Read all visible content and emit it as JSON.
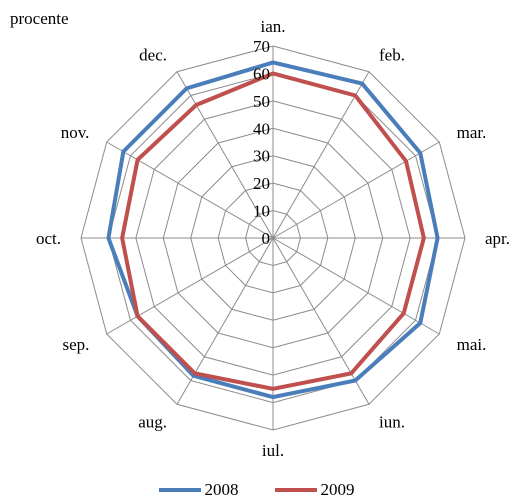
{
  "chart_data": {
    "type": "radar",
    "unit_label": "procente",
    "categories": [
      "ian.",
      "feb.",
      "mar.",
      "apr.",
      "mai.",
      "iun.",
      "iul.",
      "aug.",
      "sep.",
      "oct.",
      "nov.",
      "dec."
    ],
    "radial_ticks": [
      0,
      10,
      20,
      30,
      40,
      50,
      60,
      70
    ],
    "rlim": [
      0,
      70
    ],
    "series": [
      {
        "name": "2008",
        "color": "#4a7ebb",
        "values": [
          64,
          65,
          62,
          60,
          62,
          60,
          58,
          58,
          57,
          60,
          63,
          63
        ]
      },
      {
        "name": "2009",
        "color": "#c0504d",
        "values": [
          60,
          60,
          56,
          55,
          55,
          57,
          55,
          57,
          57,
          55,
          57,
          56
        ]
      }
    ],
    "grid": true,
    "legend_position": "bottom"
  }
}
